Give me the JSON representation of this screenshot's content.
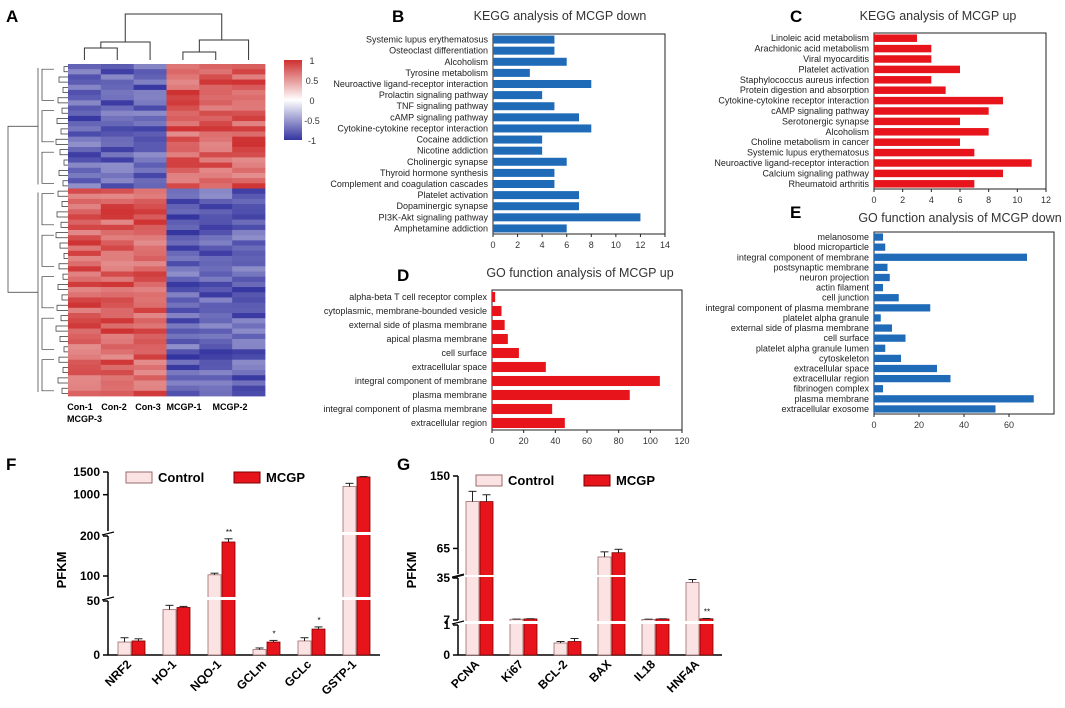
{
  "colors": {
    "blue": "#1f6bb8",
    "red": "#e8141c",
    "control": "#fbe3e3",
    "control_edge": "#9a6a6a",
    "hm_red": "#d73a3a",
    "hm_blue": "#3c3ca6"
  },
  "chart_data": [
    {
      "id": "A",
      "type": "heatmap",
      "panel_label": "A",
      "columns": [
        "Con-1",
        "Con-2",
        "Con-3",
        "MCGP-1",
        "MCGP-2",
        "MCGP-3"
      ],
      "column_label_row1": [
        "Con-1",
        "Con-2",
        "Con-3",
        "MCGP-1",
        "MCGP-2"
      ],
      "column_label_row2": [
        "MCGP-3"
      ],
      "colorbar_ticks": [
        "1",
        "0.5",
        "0",
        "-0.5",
        "-1"
      ],
      "colorbar_range": [
        -1,
        1
      ],
      "up_in_control_fraction": 0.37
    },
    {
      "id": "B",
      "type": "bar",
      "orientation": "horizontal",
      "panel_label": "B",
      "title": "KEGG analysis of MCGP down",
      "color_key": "blue",
      "categories": [
        "Systemic lupus erythematosus",
        "Osteoclast differentiation",
        "Alcoholism",
        "Tyrosine metabolism",
        "Neuroactive ligand-receptor interaction",
        "Prolactin signaling pathway",
        "TNF signaling pathway",
        "cAMP signaling pathway",
        "Cytokine-cytokine receptor interaction",
        "Cocaine addiction",
        "Nicotine addiction",
        "Cholinergic synapse",
        "Thyroid hormone synthesis",
        "Complement and coagulation cascades",
        "Platelet activation",
        "Dopaminergic synapse",
        "PI3K-Akt signaling pathway",
        "Amphetamine addiction"
      ],
      "values": [
        5,
        5,
        6,
        3,
        8,
        4,
        5,
        7,
        8,
        4,
        4,
        6,
        5,
        5,
        7,
        7,
        12,
        6
      ],
      "xlim": [
        0,
        14
      ],
      "xticks": [
        "0",
        "2",
        "4",
        "6",
        "8",
        "10",
        "12",
        "14"
      ]
    },
    {
      "id": "C",
      "type": "bar",
      "orientation": "horizontal",
      "panel_label": "C",
      "title": "KEGG analysis of MCGP up",
      "color_key": "red",
      "categories": [
        "Linoleic acid metabolism",
        "Arachidonic acid metabolism",
        "Viral myocarditis",
        "Platelet activation",
        "Staphylococcus aureus infection",
        "Protein digestion and absorption",
        "Cytokine-cytokine receptor interaction",
        "cAMP signaling pathway",
        "Serotonergic synapse",
        "Alcoholism",
        "Choline metabolism in cancer",
        "Systemic lupus erythematosus",
        "Neuroactive ligand-receptor interaction",
        "Calcium signaling pathway",
        "Rheumatoid arthritis"
      ],
      "values": [
        3,
        4,
        4,
        6,
        4,
        5,
        9,
        8,
        6,
        8,
        6,
        7,
        11,
        9,
        7
      ],
      "xlim": [
        0,
        12
      ],
      "xticks": [
        "0",
        "2",
        "4",
        "6",
        "8",
        "10",
        "12"
      ]
    },
    {
      "id": "D",
      "type": "bar",
      "orientation": "horizontal",
      "panel_label": "D",
      "title": "GO function analysis of MCGP up",
      "color_key": "red",
      "categories": [
        "alpha-beta T cell receptor complex",
        "cytoplasmic, membrane-bounded vesicle",
        "external side of plasma membrane",
        "apical plasma membrane",
        "cell surface",
        "extracellular space",
        "integral component of membrane",
        "plasma membrane",
        "integral component of plasma membrane",
        "extracellular region"
      ],
      "values": [
        2,
        6,
        8,
        10,
        17,
        34,
        106,
        87,
        38,
        46
      ],
      "xlim": [
        0,
        120
      ],
      "xticks": [
        "0",
        "20",
        "40",
        "60",
        "80",
        "100",
        "120"
      ]
    },
    {
      "id": "E",
      "type": "bar",
      "orientation": "horizontal",
      "panel_label": "E",
      "title": "GO function analysis of MCGP down",
      "color_key": "blue",
      "categories": [
        "melanosome",
        "blood microparticle",
        "integral component of membrane",
        "postsynaptic membrane",
        "neuron projection",
        "actin filament",
        "cell junction",
        "integral component of plasma membrane",
        "platelet alpha granule",
        "external side of plasma membrane",
        "cell surface",
        "platelet alpha granule lumen",
        "cytoskeleton",
        "extracellular space",
        "extracellular region",
        "fibrinogen complex",
        "plasma membrane",
        "extracellular exosome"
      ],
      "values": [
        4,
        5,
        68,
        6,
        7,
        4,
        11,
        25,
        3,
        8,
        14,
        5,
        12,
        28,
        34,
        4,
        71,
        54
      ],
      "xlim": [
        0,
        80
      ],
      "xticks": [
        "0",
        "20",
        "40",
        "60"
      ]
    },
    {
      "id": "F",
      "type": "bar",
      "orientation": "vertical",
      "panel_label": "F",
      "ylabel": "PFKM",
      "legend": [
        "Control",
        "MCGP"
      ],
      "categories": [
        "NRF2",
        "HO-1",
        "NQO-1",
        "GCLm",
        "GCLc",
        "GSTP-1"
      ],
      "series": [
        {
          "name": "Control",
          "values": [
            12,
            42,
            103,
            5,
            13,
            1180
          ],
          "errors": [
            4,
            4,
            4,
            1.5,
            3,
            70
          ]
        },
        {
          "name": "MCGP",
          "values": [
            13,
            44,
            185,
            12,
            24,
            1390
          ],
          "errors": [
            2,
            1,
            8,
            1.5,
            2,
            10
          ]
        }
      ],
      "significance": [
        "",
        "",
        "**",
        "*",
        "*",
        ""
      ],
      "y_segments": [
        {
          "range": [
            0,
            50
          ],
          "ticks": [
            "0",
            "50"
          ]
        },
        {
          "range": [
            50,
            200
          ],
          "ticks": [
            "100",
            "200"
          ]
        },
        {
          "range": [
            200,
            1500
          ],
          "ticks": [
            "1000",
            "1500"
          ]
        }
      ]
    },
    {
      "id": "G",
      "type": "bar",
      "orientation": "vertical",
      "panel_label": "G",
      "ylabel": "PFKM",
      "legend": [
        "Control",
        "MCGP"
      ],
      "categories": [
        "PCNA",
        "Ki67",
        "BCL-2",
        "BAX",
        "IL18",
        "HNF4A"
      ],
      "series": [
        {
          "name": "Control",
          "values": [
            120,
            7.5,
            0.4,
            55,
            7.4,
            32
          ],
          "errors": [
            12,
            0.1,
            0.05,
            6,
            0.15,
            2
          ]
        },
        {
          "name": "MCGP",
          "values": [
            120,
            7.7,
            0.45,
            60,
            7.7,
            7.8
          ],
          "errors": [
            8,
            0.15,
            0.1,
            4,
            0.1,
            0.2
          ]
        }
      ],
      "significance": [
        "",
        "",
        "",
        "",
        "",
        "**"
      ],
      "y_segments": [
        {
          "range": [
            0,
            1
          ],
          "ticks": [
            "0",
            "1"
          ]
        },
        {
          "range": [
            7,
            35
          ],
          "ticks": [
            "7",
            "35"
          ]
        },
        {
          "range": [
            35,
            150
          ],
          "ticks": [
            "65",
            "150"
          ]
        }
      ]
    }
  ]
}
